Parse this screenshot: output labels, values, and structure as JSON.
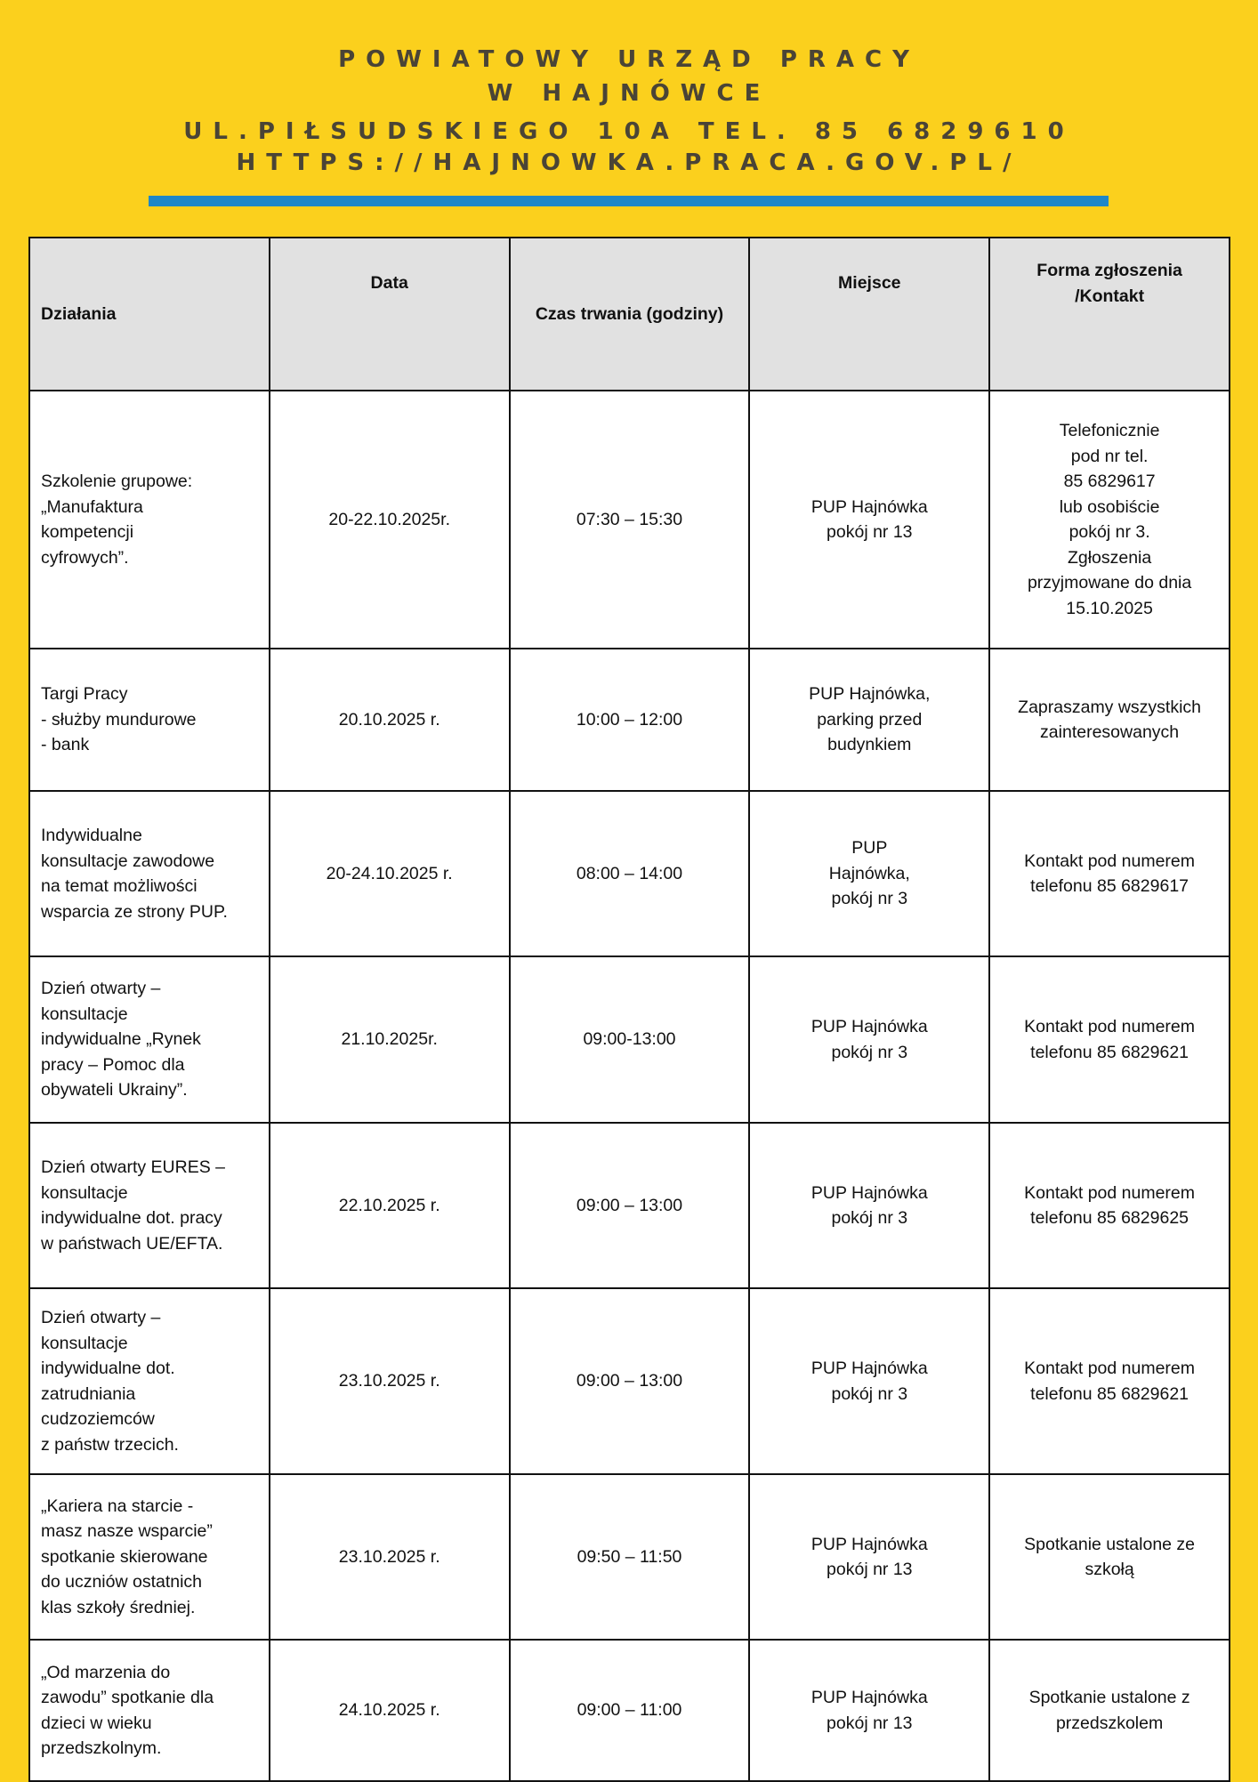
{
  "header": {
    "line1": "POWIATOWY URZĄD PRACY",
    "line2": "W HAJNÓWCE",
    "line3": "UL.PIŁSUDSKIEGO 10A TEL. 85 6829610",
    "line4": "HTTPS://HAJNOWKA.PRACA.GOV.PL/"
  },
  "colors": {
    "background": "#fbd01d",
    "divider": "#1e87c8",
    "table_header": "#e1e1e1"
  },
  "table": {
    "columns": [
      "Działania",
      "Data",
      "Czas trwania (godziny)",
      "Miejsce",
      "Forma zgłoszenia\n/Kontakt"
    ],
    "rows": [
      [
        "Szkolenie grupowe:\n„Manufaktura\nkompetencji\ncyfrowych”.",
        "20-22.10.2025r.",
        "07:30 – 15:30",
        "PUP Hajnówka\npokój nr 13",
        "Telefonicznie\npod nr tel.\n85 6829617\nlub osobiście\npokój nr 3.\nZgłoszenia\nprzyjmowane do dnia\n15.10.2025"
      ],
      [
        "Targi Pracy\n- służby mundurowe\n- bank",
        "20.10.2025 r.",
        "10:00 – 12:00",
        "PUP Hajnówka,\nparking przed\nbudynkiem",
        "Zapraszamy wszystkich\nzainteresowanych"
      ],
      [
        "Indywidualne\nkonsultacje zawodowe\nna temat możliwości\nwsparcia ze strony PUP.",
        "20-24.10.2025 r.",
        "08:00 – 14:00",
        "PUP\nHajnówka,\npokój nr 3",
        "Kontakt pod numerem\ntelefonu 85 6829617"
      ],
      [
        "Dzień otwarty –\nkonsultacje\nindywidualne „Rynek\npracy – Pomoc dla\nobywateli Ukrainy”.",
        "21.10.2025r.",
        "09:00-13:00",
        "PUP Hajnówka\npokój nr 3",
        "Kontakt pod numerem\ntelefonu 85 6829621"
      ],
      [
        "Dzień otwarty EURES –\nkonsultacje\nindywidualne dot. pracy\nw państwach UE/EFTA.",
        "22.10.2025 r.",
        "09:00 – 13:00",
        "PUP Hajnówka\npokój nr 3",
        "Kontakt pod numerem\ntelefonu 85 6829625"
      ],
      [
        "Dzień otwarty –\nkonsultacje\nindywidualne dot.\nzatrudniania\ncudzoziemców\nz państw trzecich.",
        "23.10.2025 r.",
        "09:00 – 13:00",
        "PUP Hajnówka\npokój nr 3",
        "Kontakt pod numerem\ntelefonu 85 6829621"
      ],
      [
        "„Kariera na starcie -\nmasz nasze wsparcie”\nspotkanie skierowane\ndo uczniów ostatnich\nklas szkoły średniej.",
        "23.10.2025 r.",
        "09:50 – 11:50",
        "PUP Hajnówka\npokój nr 13",
        "Spotkanie ustalone ze\nszkołą"
      ],
      [
        "„Od marzenia do\nzawodu” spotkanie dla\ndzieci w wieku\nprzedszkolnym.",
        "24.10.2025 r.",
        "09:00 – 11:00",
        "PUP Hajnówka\npokój nr 13",
        "Spotkanie ustalone z\nprzedszkolem"
      ]
    ]
  }
}
